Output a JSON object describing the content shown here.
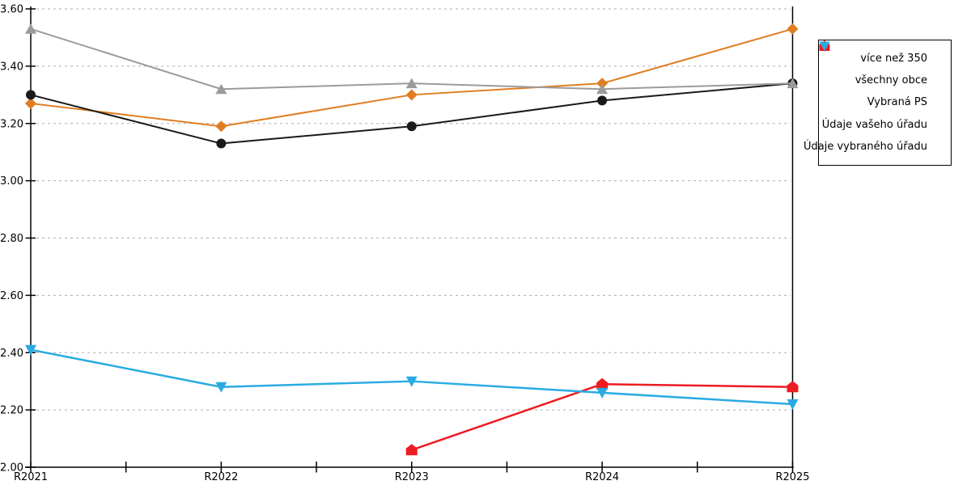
{
  "chart_data": {
    "type": "line",
    "title": "",
    "xlabel": "",
    "ylabel": "",
    "categories": [
      "R2021",
      "R2022",
      "R2023",
      "R2024",
      "R2025"
    ],
    "series": [
      {
        "name": "více než 350",
        "marker": "diamond",
        "color": "#E07D22",
        "line_width": 2,
        "values": [
          3.27,
          3.19,
          3.3,
          3.34,
          3.53
        ]
      },
      {
        "name": "všechny obce",
        "marker": "circle",
        "color": "#1A1A1A",
        "line_width": 2,
        "values": [
          3.3,
          3.13,
          3.19,
          3.28,
          3.34
        ]
      },
      {
        "name": "Vybraná PS",
        "marker": "triangle-up",
        "color": "#9B9B9B",
        "line_width": 2,
        "values": [
          3.53,
          3.32,
          3.34,
          3.32,
          3.34
        ]
      },
      {
        "name": "Údaje vašeho úřadu",
        "marker": "pentagon",
        "color": "#ED1B22",
        "line_width": 2.5,
        "values": [
          null,
          null,
          2.06,
          2.29,
          2.28
        ]
      },
      {
        "name": "Údaje vybraného úřadu",
        "marker": "triangle-down",
        "color": "#29ABE2",
        "line_width": 2.5,
        "values": [
          2.41,
          2.28,
          2.3,
          2.26,
          2.22
        ]
      }
    ],
    "ylim": [
      2.0,
      3.6
    ],
    "y_step": 0.2,
    "y_tick_labels": [
      "2.00",
      "2.20",
      "2.40",
      "2.60",
      "2.80",
      "3.00",
      "3.20",
      "3.40",
      "3.60"
    ],
    "grid": "dashed-horizontal",
    "grid_color": "#ADADAD",
    "axis_color": "#000000",
    "legend_position": "right-outside",
    "highlight_x": "R2025"
  }
}
